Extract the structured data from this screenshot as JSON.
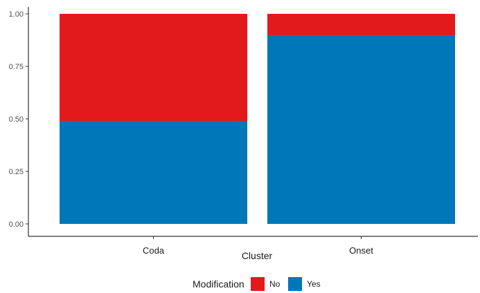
{
  "chart_data": {
    "type": "bar",
    "stacked": true,
    "normalized": true,
    "categories": [
      "Coda",
      "Onset"
    ],
    "series": [
      {
        "name": "No",
        "values": [
          0.51,
          0.105
        ],
        "color": "#e31a1c"
      },
      {
        "name": "Yes",
        "values": [
          0.49,
          0.895
        ],
        "color": "#0077b8"
      }
    ],
    "xlabel": "Cluster",
    "ylabel": "",
    "ylim": [
      0,
      1
    ],
    "yticks": [
      "0.00",
      "0.25",
      "0.50",
      "0.75",
      "1.00"
    ],
    "grid": false,
    "legend": {
      "title": "Modification",
      "position": "bottom",
      "entries": [
        "No",
        "Yes"
      ]
    }
  }
}
